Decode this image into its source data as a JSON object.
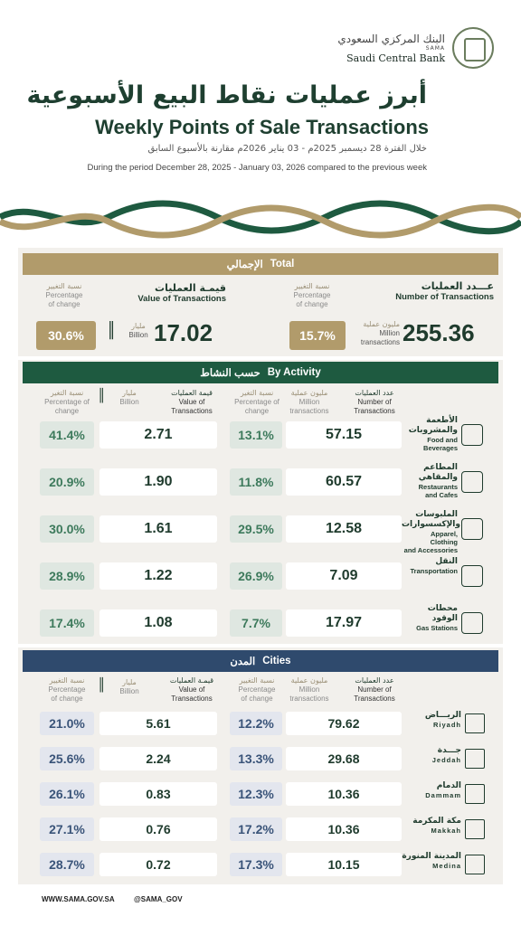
{
  "logo": {
    "ar": "البنك المركزي السعودي",
    "sama": "SAMA",
    "en": "Saudi Central Bank"
  },
  "title": {
    "ar": "أبرز عمليات نقاط البيع الأسبوعية",
    "en": "Weekly Points of Sale Transactions"
  },
  "period": {
    "ar": "خلال الفترة 28 ديسمبر 2025م - 03 يناير 2026م مقارنة بالأسبوع السابق",
    "en": "During the period December 28, 2025 - January 03, 2026 compared to the previous week"
  },
  "colors": {
    "gold": "#b19b6b",
    "green": "#1e5a40",
    "blue": "#2f4a6d"
  },
  "total": {
    "header_ar": "الإجمالي",
    "header_en": "Total",
    "num_label_ar": "عـــدد العمليات",
    "num_label_en": "Number of Transactions",
    "val_label_ar": "قيمـة العمليات",
    "val_label_en": "Value of Transactions",
    "pct_label_ar": "نسبة التغيير",
    "pct_label_en1": "Percentage",
    "pct_label_en2": "of change",
    "num_unit_ar": "مليون عملية",
    "num_unit_en1": "Million",
    "num_unit_en2": "transactions",
    "val_unit_ar": "مليار",
    "val_unit_en": "Billion",
    "transactions": "255.36",
    "transactions_change": "15.7%",
    "value": "17.02",
    "value_change": "30.6%"
  },
  "activity": {
    "header_ar": "حسب النشاط",
    "header_en": "By Activity",
    "col_num_ar": "عدد العمليات",
    "col_num_en1": "Number of",
    "col_num_en2": "Transactions",
    "col_unit_ar": "مليون عملية",
    "col_unit_en": "Million transactions",
    "col_pct_ar": "نسبة التغير",
    "col_pct_en": "Percentage of change",
    "col_val_ar": "قيمة العمليات",
    "col_val_en1": "Value of",
    "col_val_en2": "Transactions",
    "col_bil_ar": "مليار",
    "col_bil_en": "Billion",
    "rows": [
      {
        "ar": "الأطعمة والمشروبات",
        "en1": "Food and",
        "en2": "Beverages",
        "icon": "food-basket-icon",
        "transactions": "57.15",
        "tx_change": "13.1%",
        "value": "2.71",
        "value_change": "41.4%"
      },
      {
        "ar": "المطاعم والمقاهي",
        "en1": "Restaurants",
        "en2": "and Cafes",
        "icon": "restaurant-icon",
        "transactions": "60.57",
        "tx_change": "11.8%",
        "value": "1.90",
        "value_change": "20.9%"
      },
      {
        "ar": "الملبوسات والإكسسوارات",
        "en1": "Apparel, Clothing",
        "en2": "and Accessories",
        "icon": "apparel-icon",
        "transactions": "12.58",
        "tx_change": "29.5%",
        "value": "1.61",
        "value_change": "30.0%"
      },
      {
        "ar": "النقل",
        "en1": "Transportation",
        "en2": "",
        "icon": "bus-icon",
        "transactions": "7.09",
        "tx_change": "26.9%",
        "value": "1.22",
        "value_change": "28.9%"
      },
      {
        "ar": "محطات الوقود",
        "en1": "Gas Stations",
        "en2": "",
        "icon": "gas-pump-icon",
        "transactions": "17.97",
        "tx_change": "7.7%",
        "value": "1.08",
        "value_change": "17.4%"
      }
    ]
  },
  "cities": {
    "header_ar": "المدن",
    "header_en": "Cities",
    "rows": [
      {
        "ar": "الريـــاض",
        "en": "Riyadh",
        "icon": "riyadh-tower-icon",
        "transactions": "79.62",
        "tx_change": "12.2%",
        "value": "5.61",
        "value_change": "21.0%"
      },
      {
        "ar": "جـــدة",
        "en": "Jeddah",
        "icon": "jeddah-tower-icon",
        "transactions": "29.68",
        "tx_change": "13.3%",
        "value": "2.24",
        "value_change": "25.6%"
      },
      {
        "ar": "الدمام",
        "en": "Dammam",
        "icon": "dammam-skyline-icon",
        "transactions": "10.36",
        "tx_change": "12.3%",
        "value": "0.83",
        "value_change": "26.1%"
      },
      {
        "ar": "مكة المكرمة",
        "en": "Makkah",
        "icon": "makkah-icon",
        "transactions": "10.36",
        "tx_change": "17.2%",
        "value": "0.76",
        "value_change": "27.1%"
      },
      {
        "ar": "المدينة المنورة",
        "en": "Medina",
        "icon": "medina-mosque-icon",
        "transactions": "10.15",
        "tx_change": "17.3%",
        "value": "0.72",
        "value_change": "28.7%"
      }
    ]
  },
  "footer": {
    "website": "WWW.SAMA.GOV.SA",
    "handle": "@SAMA_GOV"
  }
}
